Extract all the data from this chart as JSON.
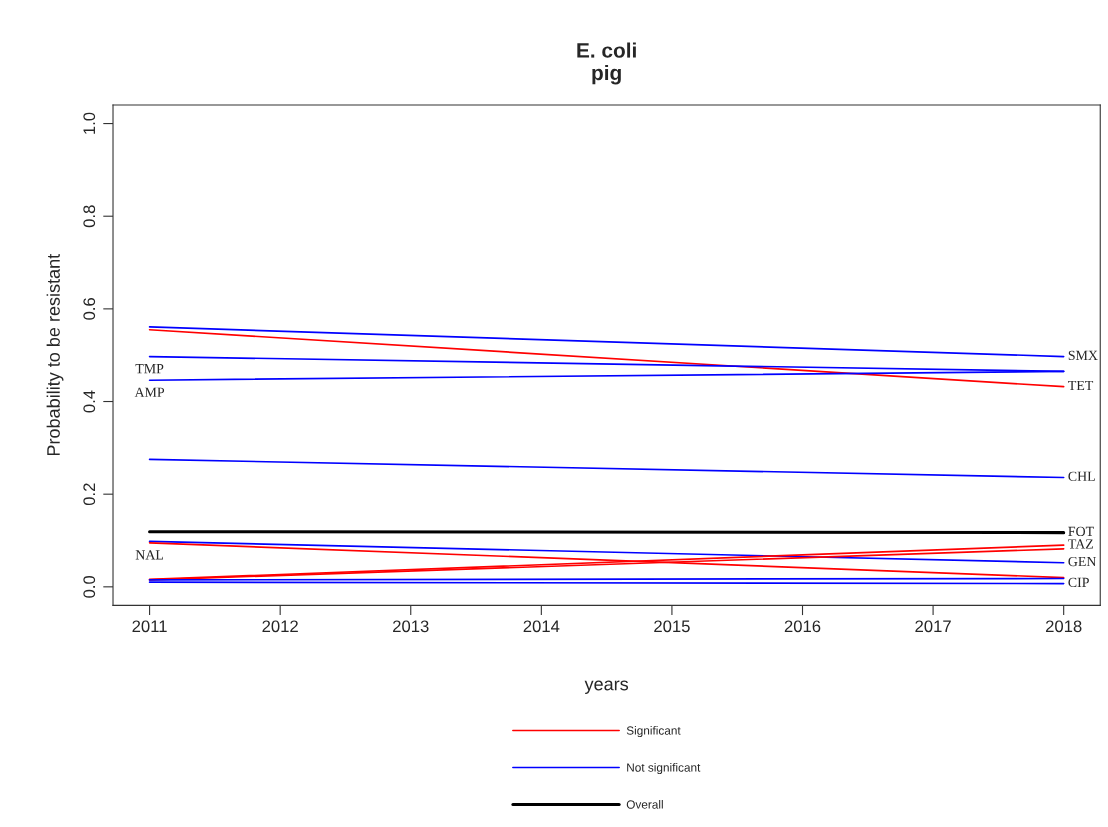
{
  "chart_data": {
    "type": "line",
    "title": "E. coli\npig",
    "xlabel": "years",
    "ylabel": "Probability to be resistant",
    "x": [
      2011,
      2018
    ],
    "series": [
      {
        "name": "TET",
        "color": "#ff0000",
        "values": [
          0.555,
          0.432
        ]
      },
      {
        "name": "SMX",
        "color": "#0000ff",
        "values": [
          0.561,
          0.497
        ]
      },
      {
        "name": "TMP",
        "color": "#0000ff",
        "values": [
          0.497,
          0.465
        ]
      },
      {
        "name": "AMP",
        "color": "#0000ff",
        "values": [
          0.446,
          0.465
        ]
      },
      {
        "name": "CHL",
        "color": "#0000ff",
        "values": [
          0.275,
          0.236
        ]
      },
      {
        "name": "FOT",
        "color": "#000000",
        "values": [
          0.119,
          0.117
        ]
      },
      {
        "name": "GEN",
        "color": "#0000ff",
        "values": [
          0.098,
          0.052
        ]
      },
      {
        "name": "NAL",
        "color": "#ff0000",
        "values": [
          0.095,
          0.02
        ]
      },
      {
        "name": "TAZ",
        "color": "#ff0000",
        "values": [
          0.016,
          0.09
        ]
      },
      {
        "color": "#ff0000",
        "values": [
          0.015,
          0.082
        ]
      },
      {
        "color": "#0000ff",
        "values": [
          0.015,
          0.018
        ]
      },
      {
        "name": "CIP",
        "color": "#0000ff",
        "values": [
          0.01,
          0.007
        ]
      }
    ],
    "annotations": [
      "Significant",
      "Not significant",
      "Overall"
    ],
    "xlim": [
      2010.72,
      2018.28
    ],
    "xticks": [
      2011,
      2012,
      2013,
      2014,
      2015,
      2016,
      2017,
      2018
    ],
    "ylim": [
      -0.04,
      1.04
    ],
    "yticks": [
      {
        "value": 0,
        "label": "0.0"
      },
      0.2,
      0.4,
      0.6,
      0.8,
      {
        "value": 1,
        "label": "1.0"
      }
    ],
    "grid": false,
    "legend": "bottom"
  }
}
